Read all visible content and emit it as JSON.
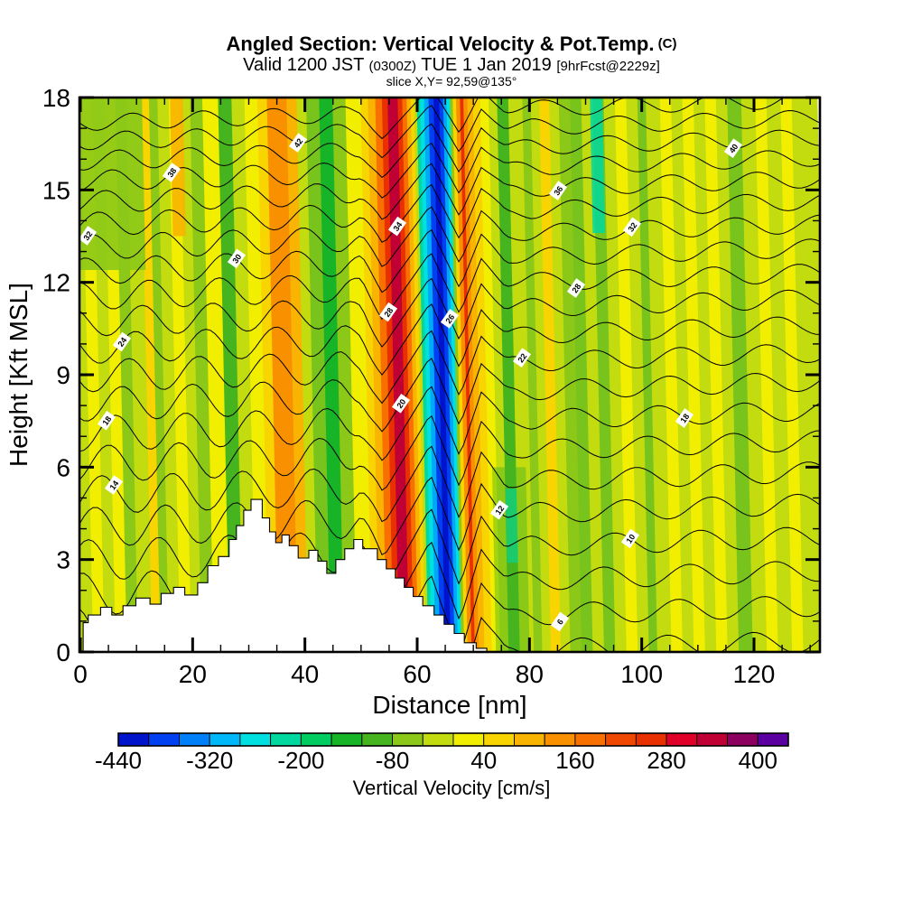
{
  "title": {
    "main": "Angled Section: Vertical Velocity & Pot.Temp.",
    "main_suffix": " (C)",
    "sub_parts": [
      "Valid 1200 JST ",
      "(0300Z)",
      " TUE 1 Jan 2019 ",
      "[9hrFcst@2229z]"
    ],
    "slice": "slice X,Y= 92,59@135°"
  },
  "chart_data": {
    "type": "contour_cross_section",
    "title": "Angled Section: Vertical Velocity & Pot.Temp. (C)",
    "valid_line": "Valid 1200 JST (0300Z) TUE 1 Jan 2019 [9hrFcst@2229z]",
    "slice_line": "slice X,Y= 92,59@135°",
    "xlabel": "Distance [nm]",
    "ylabel": "Height [Kft MSL]",
    "xlim": [
      0,
      132
    ],
    "ylim": [
      0,
      18
    ],
    "x_ticks_major": [
      0,
      20,
      40,
      60,
      80,
      100,
      120
    ],
    "x_tick_minor_step": 5,
    "y_ticks_major": [
      0,
      3,
      6,
      9,
      12,
      15,
      18
    ],
    "y_tick_minor_step": 1,
    "fill_label": "Vertical Velocity [cm/s]",
    "fill_levels": [
      -440,
      -400,
      -360,
      -320,
      -280,
      -240,
      -200,
      -160,
      -120,
      -80,
      -40,
      0,
      40,
      80,
      120,
      160,
      200,
      240,
      280,
      320,
      360,
      400,
      440
    ],
    "fill_ticks": [
      -440,
      -320,
      -200,
      -80,
      40,
      160,
      280,
      400
    ],
    "fill_palette": [
      "#0014cc",
      "#0040f0",
      "#0080f8",
      "#00b8f8",
      "#00e0e0",
      "#00d8a0",
      "#00cc60",
      "#18b428",
      "#46b41e",
      "#8cc818",
      "#c2dc10",
      "#f2ee00",
      "#f8d400",
      "#f8b400",
      "#f89000",
      "#f87000",
      "#f04800",
      "#e83000",
      "#e00028",
      "#c00034",
      "#8c0060",
      "#5a00a0"
    ],
    "colors": {
      "BG": "#c2dc10",
      "Y": "#f2ee00",
      "GD": "#f8d400",
      "AM": "#f8b400",
      "OR": "#f89000",
      "DO": "#f87000",
      "RO": "#e83000",
      "CR": "#c00034",
      "G1": "#8cc818",
      "G2": "#78c41c",
      "G3": "#46b41e",
      "G4": "#18b428",
      "TE": "#00d8a0",
      "CY": "#00e0e0",
      "SB": "#00a8f8",
      "BL": "#0040f0",
      "DB": "#0014cc"
    },
    "bands_nm": [
      [
        0,
        3.5,
        "BG"
      ],
      [
        3.5,
        5.5,
        "Y"
      ],
      [
        5.5,
        7.5,
        "BG"
      ],
      [
        7.5,
        9.5,
        "Y"
      ],
      [
        9.5,
        11.5,
        "G1"
      ],
      [
        11.5,
        14,
        "BG"
      ],
      [
        14,
        15.5,
        "GD"
      ],
      [
        15.5,
        17,
        "G1"
      ],
      [
        17,
        19,
        "BG"
      ],
      [
        19,
        21,
        "Y"
      ],
      [
        21,
        22.8,
        "BG"
      ],
      [
        22.8,
        25,
        "G1"
      ],
      [
        25,
        27.8,
        "Y"
      ],
      [
        27.8,
        30.2,
        "G3"
      ],
      [
        30.2,
        32.5,
        "BG"
      ],
      [
        32.5,
        34.8,
        "Y"
      ],
      [
        34.8,
        36.5,
        "GD"
      ],
      [
        36.5,
        40,
        "OR"
      ],
      [
        40,
        41.8,
        "AM"
      ],
      [
        41.8,
        43.5,
        "BG"
      ],
      [
        43.5,
        45.8,
        "G2"
      ],
      [
        45.8,
        48.2,
        "G4"
      ],
      [
        48.2,
        50.5,
        "G1"
      ],
      [
        50.5,
        53.2,
        "Y"
      ],
      [
        53.2,
        54.5,
        "GD"
      ],
      [
        54.5,
        55.8,
        "AM"
      ],
      [
        55.8,
        57,
        "DO"
      ],
      [
        57,
        58,
        "RO"
      ],
      [
        58,
        59.8,
        "CR"
      ],
      [
        59.8,
        60.6,
        "RO"
      ],
      [
        60.6,
        61.4,
        "DO"
      ],
      [
        61.4,
        62.1,
        "AM"
      ],
      [
        62.1,
        62.7,
        "GD"
      ],
      [
        62.7,
        63.2,
        "BG"
      ],
      [
        63.2,
        63.8,
        "TE"
      ],
      [
        63.8,
        64.5,
        "CY"
      ],
      [
        64.5,
        65.3,
        "SB"
      ],
      [
        65.3,
        66.2,
        "BL"
      ],
      [
        66.2,
        67.2,
        "DB"
      ],
      [
        67.2,
        67.9,
        "BL"
      ],
      [
        67.9,
        68.5,
        "SB"
      ],
      [
        68.5,
        69.1,
        "CY"
      ],
      [
        69.1,
        69.6,
        "G1"
      ],
      [
        69.6,
        70.2,
        "GD"
      ],
      [
        70.2,
        70.9,
        "OR"
      ],
      [
        70.9,
        71.5,
        "RO"
      ],
      [
        71.5,
        72.2,
        "OR"
      ],
      [
        72.2,
        73.2,
        "AM"
      ],
      [
        73.2,
        74.5,
        "GD"
      ],
      [
        74.5,
        76,
        "Y"
      ],
      [
        76,
        77.5,
        "BG"
      ],
      [
        77.5,
        79.5,
        "G3"
      ],
      [
        79.5,
        82,
        "BG"
      ],
      [
        82,
        83.5,
        "G1"
      ],
      [
        83.5,
        85,
        "BG"
      ],
      [
        85,
        86.8,
        "GD"
      ],
      [
        86.8,
        88.5,
        "BG"
      ],
      [
        88.5,
        90.5,
        "G1"
      ],
      [
        90.5,
        92.5,
        "G2"
      ],
      [
        92.5,
        94.5,
        "BG"
      ],
      [
        94.5,
        96.5,
        "G2"
      ],
      [
        96.5,
        98.5,
        "BG"
      ],
      [
        98.5,
        100.5,
        "Y"
      ],
      [
        100.5,
        102.5,
        "BG"
      ],
      [
        102.5,
        104,
        "G2"
      ],
      [
        104,
        106.5,
        "BG"
      ],
      [
        106.5,
        108.5,
        "Y"
      ],
      [
        108.5,
        110.5,
        "BG"
      ],
      [
        110.5,
        112.5,
        "Y"
      ],
      [
        112.5,
        114.5,
        "BG"
      ],
      [
        114.5,
        116.5,
        "Y"
      ],
      [
        116.5,
        118.5,
        "BG"
      ],
      [
        118.5,
        121,
        "G2"
      ],
      [
        121,
        123.5,
        "BG"
      ],
      [
        123.5,
        125.5,
        "Y"
      ],
      [
        125.5,
        128,
        "BG"
      ],
      [
        128,
        130,
        "Y"
      ],
      [
        130,
        132,
        "BG"
      ]
    ],
    "overlays": [
      {
        "x0": 0,
        "x1": 12,
        "h0": 12.4,
        "h1": 18,
        "c": "G1",
        "op": 0.9
      },
      {
        "x0": 17,
        "x1": 19.3,
        "h0": 13.5,
        "h1": 18,
        "c": "AM",
        "op": 0.9
      },
      {
        "x0": 91.8,
        "x1": 94,
        "h0": 13.6,
        "h1": 18,
        "c": "TE",
        "op": 0.85
      },
      {
        "x0": 73,
        "x1": 79,
        "h0": 0,
        "h1": 6,
        "c": "G3",
        "op": 0.45
      },
      {
        "x0": 75.3,
        "x1": 77.3,
        "h0": 2.9,
        "h1": 5.3,
        "c": "TE",
        "op": 0.6
      }
    ],
    "terrain_nm_kft": [
      [
        0.5,
        0
      ],
      [
        0.5,
        0.95
      ],
      [
        1.4,
        0.95
      ],
      [
        1.4,
        1.2
      ],
      [
        3.6,
        1.2
      ],
      [
        3.6,
        1.45
      ],
      [
        5.6,
        1.45
      ],
      [
        5.6,
        1.2
      ],
      [
        7.6,
        1.2
      ],
      [
        7.6,
        1.5
      ],
      [
        9.9,
        1.5
      ],
      [
        9.9,
        1.75
      ],
      [
        12.4,
        1.75
      ],
      [
        12.4,
        1.55
      ],
      [
        14.4,
        1.55
      ],
      [
        14.4,
        1.9
      ],
      [
        16.6,
        1.9
      ],
      [
        16.6,
        2.1
      ],
      [
        18.6,
        2.1
      ],
      [
        18.6,
        1.85
      ],
      [
        20.9,
        1.85
      ],
      [
        20.9,
        2.25
      ],
      [
        22.7,
        2.25
      ],
      [
        22.7,
        2.8
      ],
      [
        24.6,
        2.8
      ],
      [
        24.6,
        3.1
      ],
      [
        26.5,
        3.1
      ],
      [
        26.5,
        3.65
      ],
      [
        27.8,
        3.65
      ],
      [
        27.8,
        4.1
      ],
      [
        29.1,
        4.1
      ],
      [
        29.1,
        4.6
      ],
      [
        30.4,
        4.6
      ],
      [
        30.4,
        4.95
      ],
      [
        32.4,
        4.95
      ],
      [
        32.4,
        4.35
      ],
      [
        33.7,
        4.35
      ],
      [
        33.7,
        3.9
      ],
      [
        34.8,
        3.9
      ],
      [
        34.8,
        3.55
      ],
      [
        35.9,
        3.55
      ],
      [
        35.9,
        3.8
      ],
      [
        37.2,
        3.8
      ],
      [
        37.2,
        3.45
      ],
      [
        38.8,
        3.45
      ],
      [
        38.8,
        3.05
      ],
      [
        40.7,
        3.05
      ],
      [
        40.7,
        3.3
      ],
      [
        42.3,
        3.3
      ],
      [
        42.3,
        2.95
      ],
      [
        43.9,
        2.95
      ],
      [
        43.9,
        2.55
      ],
      [
        45.5,
        2.55
      ],
      [
        45.5,
        3.0
      ],
      [
        47.1,
        3.0
      ],
      [
        47.1,
        3.35
      ],
      [
        48.7,
        3.35
      ],
      [
        48.7,
        3.65
      ],
      [
        50.3,
        3.65
      ],
      [
        50.3,
        3.35
      ],
      [
        52.9,
        3.35
      ],
      [
        52.9,
        3.0
      ],
      [
        54.5,
        3.0
      ],
      [
        54.5,
        2.7
      ],
      [
        56.1,
        2.7
      ],
      [
        56.1,
        2.4
      ],
      [
        57.7,
        2.4
      ],
      [
        57.7,
        2.1
      ],
      [
        59.3,
        2.1
      ],
      [
        59.3,
        1.8
      ],
      [
        61.0,
        1.8
      ],
      [
        61.0,
        1.5
      ],
      [
        63.0,
        1.5
      ],
      [
        63.0,
        1.2
      ],
      [
        64.8,
        1.2
      ],
      [
        64.8,
        0.9
      ],
      [
        66.6,
        0.9
      ],
      [
        66.6,
        0.6
      ],
      [
        68.4,
        0.6
      ],
      [
        68.4,
        0.3
      ],
      [
        70.5,
        0.3
      ],
      [
        70.5,
        0.12
      ],
      [
        72.4,
        0.12
      ],
      [
        72.4,
        0
      ]
    ],
    "contours": {
      "field": "Potential Temperature (C)",
      "interval": 2,
      "value_top": 44,
      "count": 21,
      "base_y": 110,
      "spacing": 20,
      "accel": 0.5,
      "tilt_left": 26,
      "wave_left": {
        "amp_base": 9,
        "amp_per_line": 0.8,
        "amp_max": 24,
        "wavelength": 78,
        "phase_per_line": 0.6,
        "fade_end": 430,
        "fade_span": 50
      },
      "core": {
        "nodes": [
          [
            400,
            0
          ],
          [
            424,
            1
          ],
          [
            477,
            -1
          ],
          [
            509,
            0.9
          ],
          [
            533,
            -0.75
          ],
          [
            560,
            0
          ]
        ],
        "amp_base": 28,
        "amp_per_line": 1.1,
        "amp_max": 55
      },
      "wave_right": {
        "amp_base": 9,
        "amp_per_line": 0.15,
        "wavelength": 95,
        "phase_per_line": 0.8,
        "fade_start": 530,
        "fade_span": 60
      },
      "labels": [
        [
          1,
          330
        ],
        [
          2,
          812
        ],
        [
          3,
          190
        ],
        [
          4,
          618
        ],
        [
          5,
          440
        ],
        [
          6,
          97
        ],
        [
          6,
          700
        ],
        [
          7,
          262
        ],
        [
          8,
          430
        ],
        [
          8,
          638
        ],
        [
          9,
          498
        ],
        [
          10,
          135
        ],
        [
          11,
          578
        ],
        [
          12,
          444
        ],
        [
          13,
          118
        ],
        [
          13,
          758
        ],
        [
          15,
          126
        ],
        [
          16,
          553
        ],
        [
          17,
          698
        ],
        [
          19,
          620
        ]
      ]
    }
  },
  "axes": {
    "x_label": "Distance [nm]",
    "y_label": "Height [Kft MSL]",
    "x_tick_labels": [
      "0",
      "20",
      "40",
      "60",
      "80",
      "100",
      "120"
    ],
    "y_tick_labels": [
      "0",
      "3",
      "6",
      "9",
      "12",
      "15",
      "18"
    ]
  },
  "colorbar": {
    "caption": "Vertical Velocity [cm/s]",
    "tick_labels": [
      "-440",
      "-320",
      "-200",
      "-80",
      "40",
      "160",
      "280",
      "400"
    ]
  }
}
